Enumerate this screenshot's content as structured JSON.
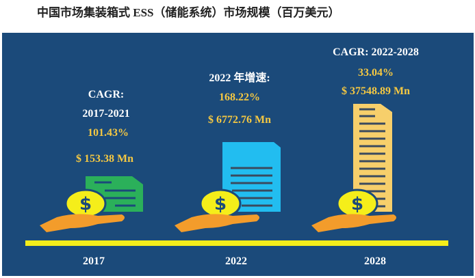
{
  "title": "中国市场集装箱式 ESS（储能系统）市场规模（百万美元）",
  "chart_data": {
    "type": "infographic",
    "title": "中国市场集装箱式 ESS（储能系统）市场规模（百万美元）",
    "categories": [
      "2017",
      "2022",
      "2028"
    ],
    "values": [
      153.38,
      6772.76,
      37548.89
    ],
    "value_labels": [
      "$ 153.38 Mn",
      "$ 6772.76 Mn",
      "$ 37548.89 Mn"
    ],
    "growth": [
      {
        "label_1": "CAGR:",
        "label_2": "2017-2021",
        "value": "101.43%"
      },
      {
        "label_1": "2022 年增速:",
        "value": "168.22%"
      },
      {
        "label_1": "CAGR: 2022-2028",
        "value": "33.04%"
      }
    ]
  },
  "colors": {
    "background": "#1b4a7a",
    "doc_2017": "#2bb05a",
    "doc_2022": "#22bdf0",
    "doc_2028": "#f7cf6b",
    "coin": "#f5ee1a",
    "hand": "#f39c2b",
    "timeline": "#f5ee1a"
  }
}
